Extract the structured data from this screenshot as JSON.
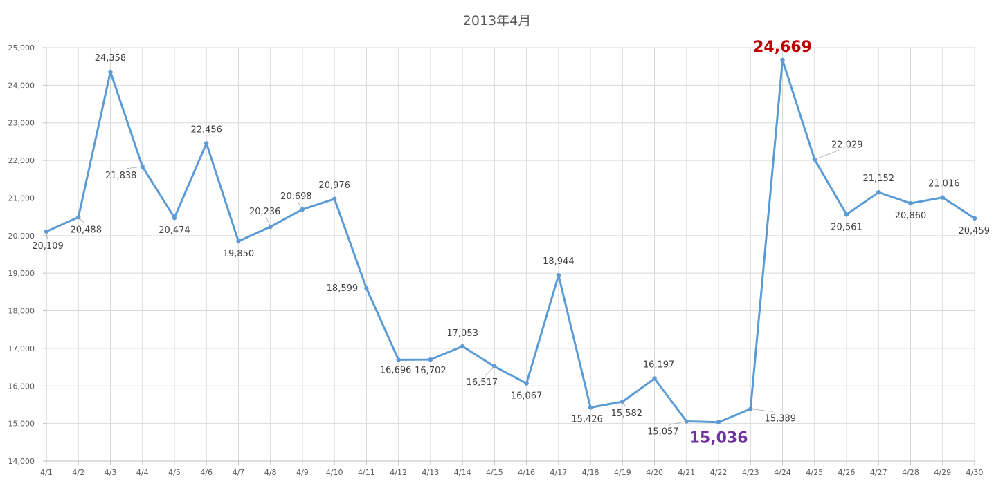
{
  "chart_data": {
    "type": "line",
    "title": "2013年4月",
    "xlabel": "",
    "ylabel": "",
    "ylim": [
      14000,
      25000
    ],
    "yticks": [
      "14,000",
      "15,000",
      "16,000",
      "17,000",
      "18,000",
      "19,000",
      "20,000",
      "21,000",
      "22,000",
      "23,000",
      "24,000",
      "25,000"
    ],
    "grid": true,
    "legend": "none",
    "categories": [
      "4/1",
      "4/2",
      "4/3",
      "4/4",
      "4/5",
      "4/6",
      "4/7",
      "4/8",
      "4/9",
      "4/10",
      "4/11",
      "4/12",
      "4/13",
      "4/14",
      "4/15",
      "4/16",
      "4/17",
      "4/18",
      "4/19",
      "4/20",
      "4/21",
      "4/22",
      "4/23",
      "4/24",
      "4/25",
      "4/26",
      "4/27",
      "4/28",
      "4/29",
      "4/30"
    ],
    "series": [
      {
        "color": "#5b9bd5",
        "values": [
          20109,
          20488,
          24358,
          21838,
          20474,
          22456,
          19850,
          20236,
          20698,
          20976,
          18599,
          16696,
          16702,
          17053,
          16517,
          16067,
          18944,
          15426,
          15582,
          16197,
          15057,
          15036,
          15389,
          24669,
          22029,
          20561,
          21152,
          20860,
          21016,
          20459
        ],
        "labels": [
          "20,109",
          "20,488",
          "24,358",
          "21,838",
          "20,474",
          "22,456",
          "19,850",
          "20,236",
          "20,698",
          "20,976",
          "18,599",
          "16,696",
          "16,702",
          "17,053",
          "16,517",
          "16,067",
          "18,944",
          "15,426",
          "15,582",
          "16,197",
          "15,057",
          "15,036",
          "15,389",
          "24,669",
          "22,029",
          "20,561",
          "21,152",
          "20,860",
          "21,016",
          "20,459"
        ]
      }
    ],
    "highlights": {
      "max": {
        "category": "4/24",
        "label": "24,669",
        "color": "#c00000"
      },
      "min": {
        "category": "4/22",
        "label": "15,036",
        "color": "#7030a0"
      }
    }
  }
}
